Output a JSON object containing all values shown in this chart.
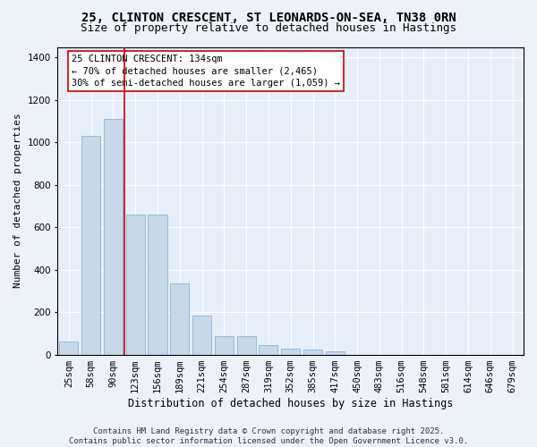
{
  "title": "25, CLINTON CRESCENT, ST LEONARDS-ON-SEA, TN38 0RN",
  "subtitle": "Size of property relative to detached houses in Hastings",
  "xlabel": "Distribution of detached houses by size in Hastings",
  "ylabel": "Number of detached properties",
  "bar_color": "#c8d8ea",
  "bar_edgecolor": "#8ab4d0",
  "bg_color": "#e8eef8",
  "grid_color": "#ffffff",
  "categories": [
    "25sqm",
    "58sqm",
    "90sqm",
    "123sqm",
    "156sqm",
    "189sqm",
    "221sqm",
    "254sqm",
    "287sqm",
    "319sqm",
    "352sqm",
    "385sqm",
    "417sqm",
    "450sqm",
    "483sqm",
    "516sqm",
    "548sqm",
    "581sqm",
    "614sqm",
    "646sqm",
    "679sqm"
  ],
  "values": [
    63,
    1030,
    1110,
    660,
    660,
    335,
    185,
    88,
    88,
    45,
    28,
    25,
    15,
    0,
    0,
    0,
    0,
    0,
    0,
    0,
    0
  ],
  "ylim": [
    0,
    1450
  ],
  "yticks": [
    0,
    200,
    400,
    600,
    800,
    1000,
    1200,
    1400
  ],
  "annotation_line1": "25 CLINTON CRESCENT: 134sqm",
  "annotation_line2": "← 70% of detached houses are smaller (2,465)",
  "annotation_line3": "30% of semi-detached houses are larger (1,059) →",
  "vline_color": "#cc0000",
  "annotation_box_edgecolor": "#cc0000",
  "footer": "Contains HM Land Registry data © Crown copyright and database right 2025.\nContains public sector information licensed under the Open Government Licence v3.0.",
  "title_fontsize": 10,
  "subtitle_fontsize": 9,
  "xlabel_fontsize": 8.5,
  "ylabel_fontsize": 8,
  "tick_fontsize": 7.5,
  "annotation_fontsize": 7.5,
  "footer_fontsize": 6.5,
  "fig_bg": "#edf2f9"
}
